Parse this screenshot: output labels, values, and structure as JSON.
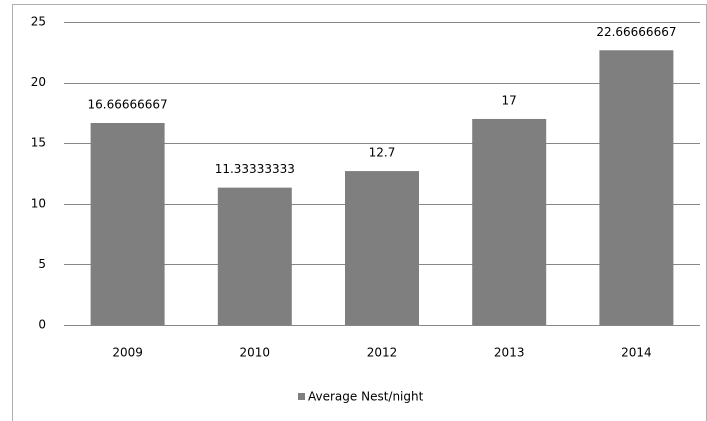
{
  "chart_data": {
    "type": "bar",
    "categories": [
      "2009",
      "2010",
      "2012",
      "2013",
      "2014"
    ],
    "series": [
      {
        "name": "Average Nest/night",
        "color": "#7f7f7f",
        "values": [
          16.66666667,
          11.33333333,
          12.7,
          17,
          22.66666667
        ]
      }
    ],
    "ylim": [
      0,
      25
    ],
    "yticks": [
      0,
      5,
      10,
      15,
      20,
      25
    ],
    "grid": true,
    "legend": "bottom"
  }
}
